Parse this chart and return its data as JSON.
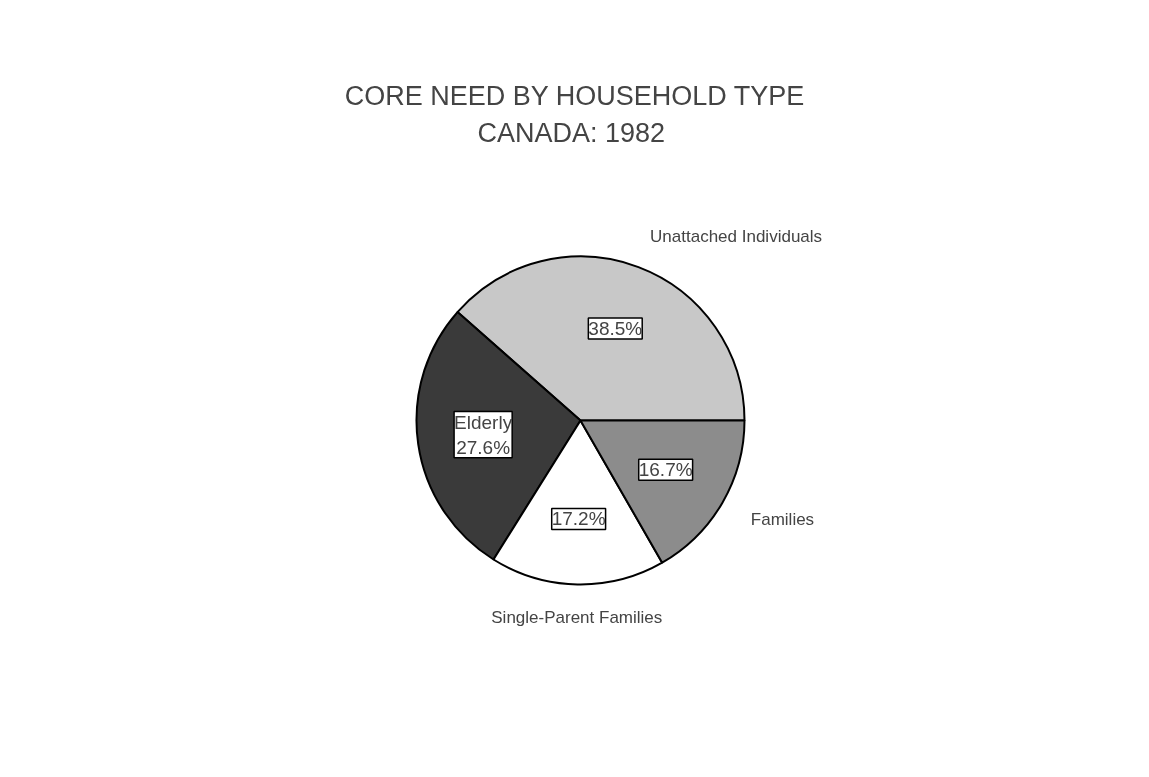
{
  "chart_data": {
    "type": "pie",
    "title": "CORE NEED BY HOUSEHOLD TYPE",
    "subtitle": "CANADA:  1982",
    "categories": [
      "Unattached Individuals",
      "Elderly",
      "Single-Parent Families",
      "Families"
    ],
    "values": [
      38.5,
      27.6,
      17.2,
      16.7
    ],
    "colors": [
      "#c8c8c8",
      "#3a3a3a",
      "#ffffff",
      "#8c8c8c"
    ],
    "value_labels": [
      "38.5%",
      "27.6%",
      "17.2%",
      "16.7%"
    ]
  }
}
